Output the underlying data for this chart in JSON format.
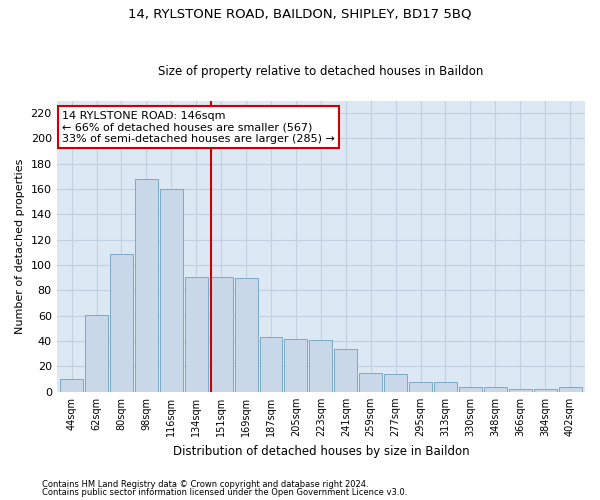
{
  "title1": "14, RYLSTONE ROAD, BAILDON, SHIPLEY, BD17 5BQ",
  "title2": "Size of property relative to detached houses in Baildon",
  "xlabel": "Distribution of detached houses by size in Baildon",
  "ylabel": "Number of detached properties",
  "categories": [
    "44sqm",
    "62sqm",
    "80sqm",
    "98sqm",
    "116sqm",
    "134sqm",
    "151sqm",
    "169sqm",
    "187sqm",
    "205sqm",
    "223sqm",
    "241sqm",
    "259sqm",
    "277sqm",
    "295sqm",
    "313sqm",
    "330sqm",
    "348sqm",
    "366sqm",
    "384sqm",
    "402sqm"
  ],
  "values": [
    10,
    61,
    109,
    168,
    160,
    91,
    91,
    90,
    43,
    42,
    41,
    34,
    15,
    14,
    8,
    8,
    4,
    4,
    2,
    2,
    4
  ],
  "bar_color": "#c8d8e8",
  "bar_edge_color": "#7aaac8",
  "vline_color": "#cc0000",
  "annotation_title": "14 RYLSTONE ROAD: 146sqm",
  "annotation_line1": "← 66% of detached houses are smaller (567)",
  "annotation_line2": "33% of semi-detached houses are larger (285) →",
  "annotation_box_facecolor": "#ffffff",
  "annotation_box_edgecolor": "#cc0000",
  "ylim": [
    0,
    230
  ],
  "yticks": [
    0,
    20,
    40,
    60,
    80,
    100,
    120,
    140,
    160,
    180,
    200,
    220
  ],
  "grid_color": "#c0d0e0",
  "background_color": "#dce8f4",
  "footer1": "Contains HM Land Registry data © Crown copyright and database right 2024.",
  "footer2": "Contains public sector information licensed under the Open Government Licence v3.0."
}
